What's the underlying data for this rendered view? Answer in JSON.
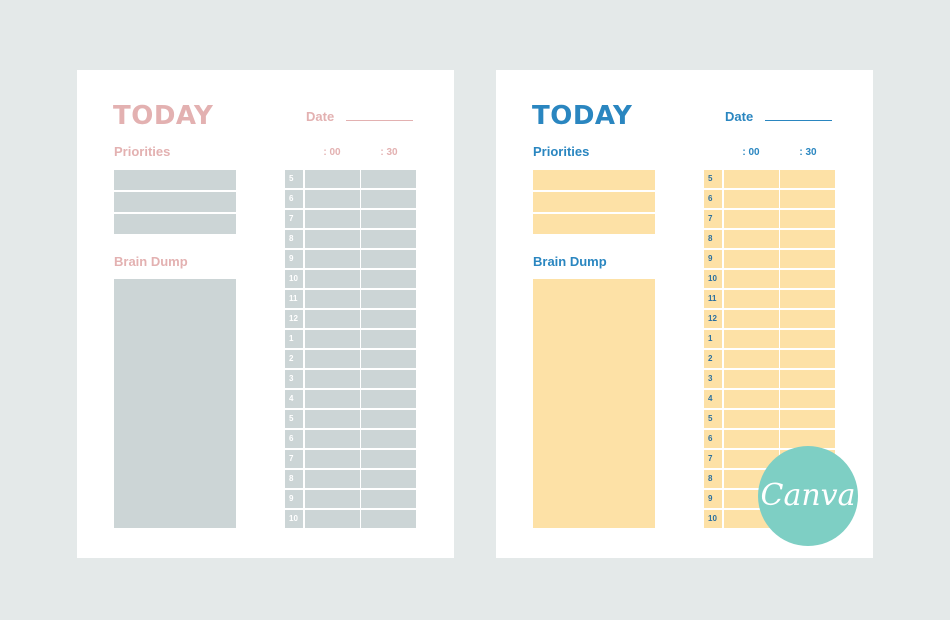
{
  "pages": [
    {
      "title": "TODAY",
      "date_label": "Date",
      "priorities_label": "Priorities",
      "brain_dump_label": "Brain Dump",
      "col_00": ": 00",
      "col_30": ": 30",
      "hours": [
        "5",
        "6",
        "7",
        "8",
        "9",
        "10",
        "11",
        "12",
        "1",
        "2",
        "3",
        "4",
        "5",
        "6",
        "7",
        "8",
        "9",
        "10"
      ],
      "colors": {
        "accent": "#e3b1b1",
        "fill": "#ccd5d6"
      }
    },
    {
      "title": "TODAY",
      "date_label": "Date",
      "priorities_label": "Priorities",
      "brain_dump_label": "Brain Dump",
      "col_00": ": 00",
      "col_30": ": 30",
      "hours": [
        "5",
        "6",
        "7",
        "8",
        "9",
        "10",
        "11",
        "12",
        "1",
        "2",
        "3",
        "4",
        "5",
        "6",
        "7",
        "8",
        "9",
        "10"
      ],
      "colors": {
        "accent": "#2a86c0",
        "fill": "#fde1a6"
      }
    }
  ],
  "badge": {
    "text": "Canva",
    "color": "#7ecfc4"
  }
}
